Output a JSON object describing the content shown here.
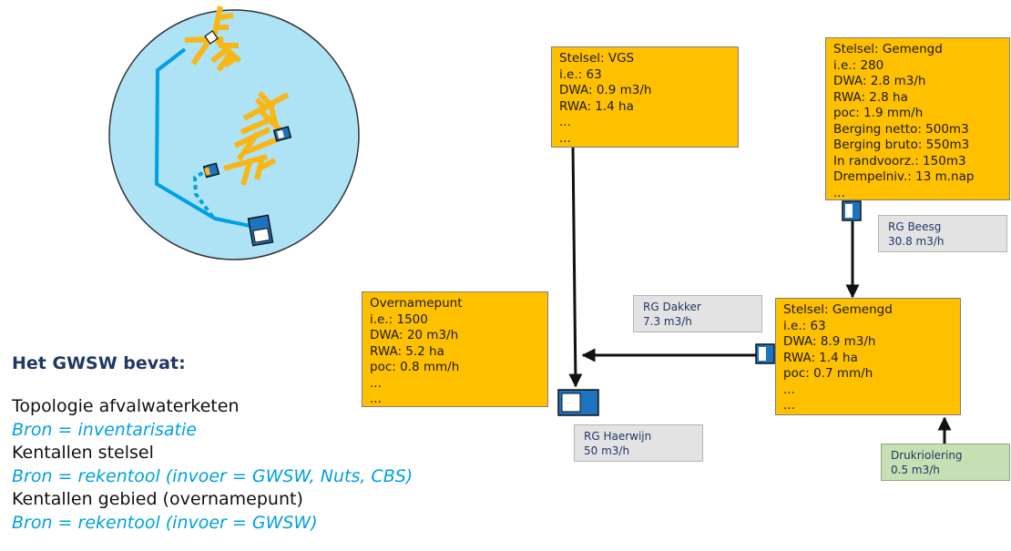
{
  "colors": {
    "stelsel": "#ffc000",
    "gemaal": "#e3e3e3",
    "druk": "#c6e0b4",
    "pipe": "#00a0e3",
    "branch": "#f7b718",
    "circle": "#aee3f6",
    "heading": "#1f3864",
    "source": "#00a0e3"
  },
  "boxes": {
    "vgs": "Stelsel: VGS\ni.e.: 63\nDWA: 0.9 m3/h\nRWA: 1.4 ha\n...\n...",
    "gemengd_top": "Stelsel: Gemengd\ni.e.: 280\nDWA: 2.8 m3/h\nRWA: 2.8 ha\npoc: 1.9 mm/h\nBerging netto: 500m3\nBerging bruto: 550m3\nIn randvoorz.: 150m3\nDrempelniv.: 13 m.nap\n...",
    "overname": "Overnamepunt\ni.e.: 1500\nDWA: 20 m3/h\nRWA: 5.2 ha\npoc: 0.8 mm/h\n...\n...",
    "gemengd_right": "Stelsel: Gemengd\ni.e.: 63\nDWA: 8.9 m3/h\nRWA: 1.4 ha\npoc: 0.7 mm/h\n...\n..."
  },
  "gemalen": {
    "beesg": "RG Beesg\n30.8 m3/h",
    "dakker": "RG Dakker\n7.3 m3/h",
    "haerwijn": "RG Haerwijn\n50 m3/h",
    "druk": "Drukriolering\n0.5 m3/h"
  },
  "legend": {
    "title": "Het GWSW bevat:",
    "lines": [
      {
        "text": "Topologie afvalwaterketen",
        "type": "item"
      },
      {
        "text": "Bron = inventarisatie",
        "type": "source"
      },
      {
        "text": "Kentallen stelsel",
        "type": "item"
      },
      {
        "text": "Bron = rekentool (invoer = GWSW, Nuts, CBS)",
        "type": "source"
      },
      {
        "text": "Kentallen gebied (overnamepunt)",
        "type": "item"
      },
      {
        "text": "Bron = rekentool (invoer = GWSW)",
        "type": "source"
      }
    ]
  }
}
